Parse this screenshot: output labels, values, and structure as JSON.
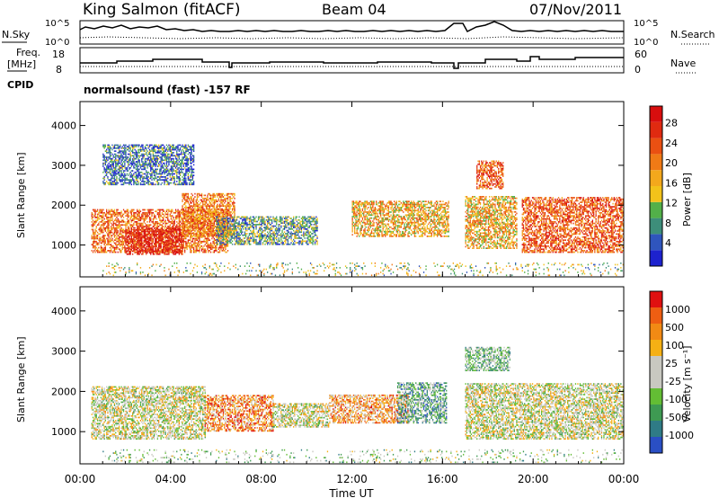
{
  "header": {
    "station": "King Salmon (fitACF)",
    "beam": "Beam 04",
    "date": "07/Nov/2011"
  },
  "status_panels": {
    "left_labels": {
      "nsky": "N.Sky",
      "freq": "Freq.",
      "freq_unit": "[MHz]",
      "cpid": "CPID"
    },
    "right_labels": {
      "nsearch": "N.Search",
      "nave": "Nave"
    },
    "noise_ticks_left": [
      "10^5",
      "10^0"
    ],
    "noise_ticks_right": [
      "10^5",
      "10^0"
    ],
    "freq_ticks": [
      "18",
      "8"
    ],
    "nave_ticks": [
      "60",
      "0"
    ],
    "cpid_text": "normalsound (fast) -157 RF"
  },
  "chart_data": [
    {
      "type": "heatmap",
      "name": "power",
      "ylabel": "Slant Range [km]",
      "ylim": [
        200,
        4600
      ],
      "yticks": [
        "1000",
        "2000",
        "3000",
        "4000"
      ],
      "colorbar": {
        "label": "Power [dB]",
        "ticks": [
          "4",
          "8",
          "12",
          "16",
          "20",
          "24",
          "28"
        ],
        "colors": [
          "#1d22ce",
          "#2f55bd",
          "#3d8e7a",
          "#52b049",
          "#f2c21a",
          "#f3a81c",
          "#f07a16",
          "#ea5012",
          "#e02a10",
          "#d80e0e"
        ]
      },
      "bands": [
        {
          "t": [
            0.5,
            6.5
          ],
          "r": [
            800,
            1900
          ],
          "level": 0.7
        },
        {
          "t": [
            2.0,
            4.5
          ],
          "r": [
            750,
            1400
          ],
          "level": 0.95
        },
        {
          "t": [
            4.5,
            6.8
          ],
          "r": [
            1200,
            2300
          ],
          "level": 0.65
        },
        {
          "t": [
            6.0,
            10.5
          ],
          "r": [
            1000,
            1700
          ],
          "level": 0.3
        },
        {
          "t": [
            12.0,
            16.3
          ],
          "r": [
            1200,
            2100
          ],
          "level": 0.55
        },
        {
          "t": [
            17.0,
            19.3
          ],
          "r": [
            900,
            2200
          ],
          "level": 0.55
        },
        {
          "t": [
            17.5,
            18.7
          ],
          "r": [
            2400,
            3100
          ],
          "level": 0.75
        },
        {
          "t": [
            19.5,
            24.0
          ],
          "r": [
            800,
            2200
          ],
          "level": 0.75
        },
        {
          "t": [
            1.0,
            5.0
          ],
          "r": [
            2500,
            3500
          ],
          "level": 0.2
        },
        {
          "t": [
            1.0,
            24.0
          ],
          "r": [
            220,
            550
          ],
          "level": 0.4
        }
      ]
    },
    {
      "type": "heatmap",
      "name": "velocity",
      "ylabel": "Slant Range [km]",
      "ylim": [
        200,
        4600
      ],
      "yticks": [
        "1000",
        "2000",
        "3000",
        "4000"
      ],
      "colorbar": {
        "label": "Velocity [m s⁻¹]",
        "ticks": [
          "1000",
          "500",
          "100",
          "25",
          "-25",
          "-100",
          "-500",
          "-1000"
        ],
        "colors": [
          "#2a4fc4",
          "#2f7b86",
          "#3e9a52",
          "#63bd34",
          "#c8c8c0",
          "#c8c8c0",
          "#f5b014",
          "#f28a14",
          "#ee5e12",
          "#e01010"
        ]
      },
      "bands": [
        {
          "t": [
            0.5,
            5.5
          ],
          "r": [
            800,
            2100
          ],
          "level": 0.5
        },
        {
          "t": [
            5.5,
            8.5
          ],
          "r": [
            1000,
            1900
          ],
          "level": 0.75
        },
        {
          "t": [
            8.5,
            11.0
          ],
          "r": [
            1100,
            1700
          ],
          "level": 0.5
        },
        {
          "t": [
            11.0,
            14.5
          ],
          "r": [
            1200,
            1900
          ],
          "level": 0.7
        },
        {
          "t": [
            14.0,
            16.2
          ],
          "r": [
            1200,
            2200
          ],
          "level": 0.3
        },
        {
          "t": [
            17.0,
            19.0
          ],
          "r": [
            2500,
            3100
          ],
          "level": 0.35
        },
        {
          "t": [
            17.0,
            24.0
          ],
          "r": [
            800,
            2200
          ],
          "level": 0.5
        },
        {
          "t": [
            1.0,
            24.0
          ],
          "r": [
            220,
            550
          ],
          "level": 0.4
        }
      ]
    }
  ],
  "x_axis": {
    "label": "Time UT",
    "range_hours": [
      0,
      24
    ],
    "ticks": [
      "00:00",
      "04:00",
      "08:00",
      "12:00",
      "16:00",
      "20:00",
      "00:00"
    ]
  }
}
